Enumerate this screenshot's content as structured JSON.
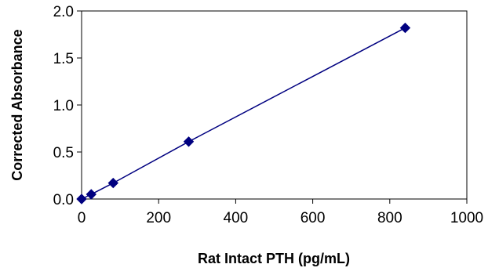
{
  "chart_data": {
    "type": "scatter",
    "title": "",
    "xlabel": "Rat Intact PTH (pg/mL)",
    "ylabel": "Corrected Absorbance",
    "xlim": [
      0,
      1000
    ],
    "ylim": [
      0,
      2.0
    ],
    "xticks": [
      "0",
      "200",
      "400",
      "600",
      "800",
      "1000"
    ],
    "yticks": [
      "0.0",
      "0.5",
      "1.0",
      "1.5",
      "2.0"
    ],
    "grid": false,
    "legend": "none",
    "series": [
      {
        "marker": "diamond",
        "line": "connected",
        "color": "#000080",
        "points": [
          {
            "x": 0,
            "y": 0.0
          },
          {
            "x": 25,
            "y": 0.05
          },
          {
            "x": 82,
            "y": 0.17
          },
          {
            "x": 278,
            "y": 0.61
          },
          {
            "x": 840,
            "y": 1.82
          }
        ]
      }
    ]
  }
}
